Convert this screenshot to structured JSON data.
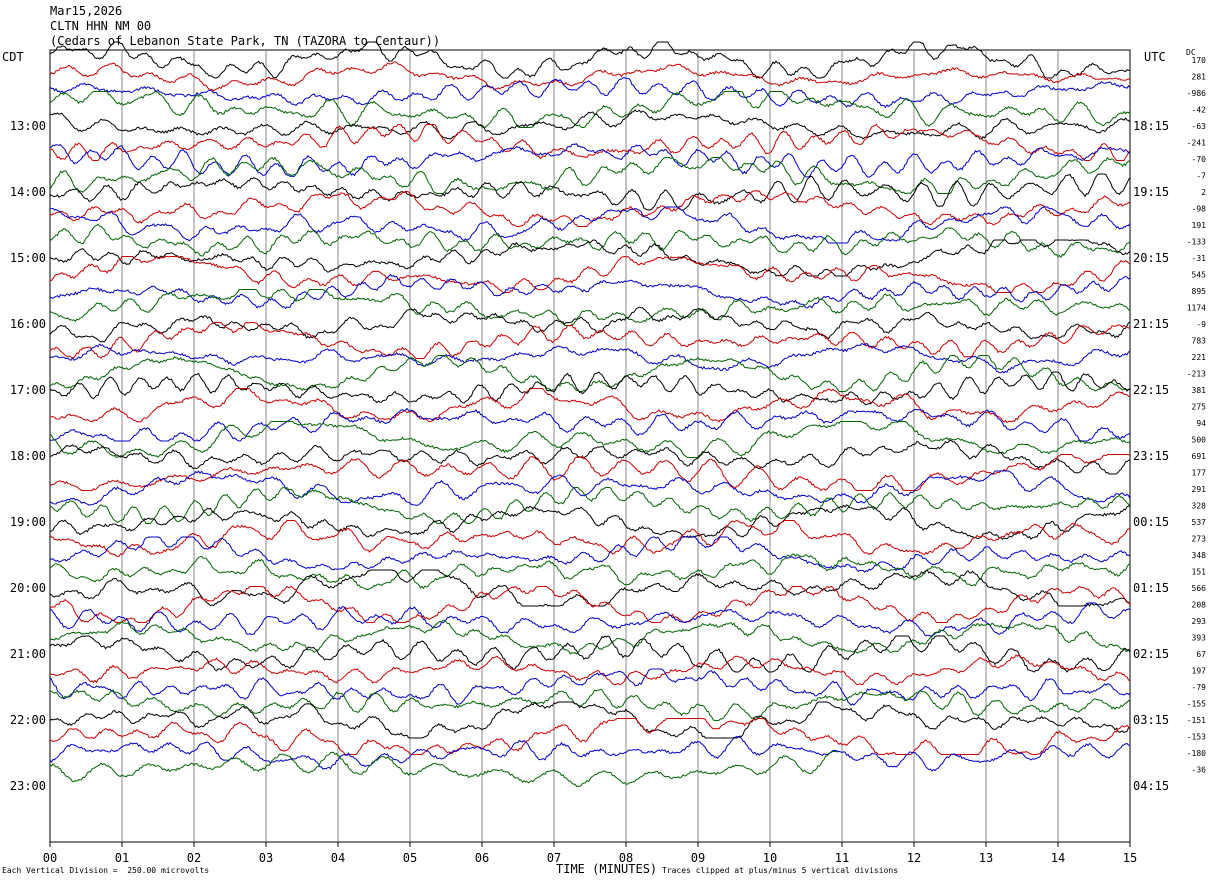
{
  "header": {
    "date": "Mar15,2026",
    "station": "CLTN HHN NM 00",
    "location": "(Cedars of Lebanon State Park, TN (TAZORA to Centaur))"
  },
  "left_zone": "CDT",
  "right_zone": "UTC",
  "dc_label": "DC",
  "footer": {
    "vertical_division": "Each Vertical Division =  250.00 microvolts",
    "clip_note": "Traces clipped at plus/minus 5 vertical divisions",
    "x_title": "TIME (MINUTES)"
  },
  "colors": {
    "trace_cycle": [
      "#000000",
      "#cc0000",
      "#0000cc",
      "#006600"
    ],
    "grid": "#888888"
  },
  "chart_data": {
    "type": "line",
    "subtype": "helicorder",
    "title": "CLTN HHN NM 00",
    "xlabel": "TIME (MINUTES)",
    "x_ticks": [
      "00",
      "01",
      "02",
      "03",
      "04",
      "05",
      "06",
      "07",
      "08",
      "09",
      "10",
      "11",
      "12",
      "13",
      "14",
      "15"
    ],
    "xlim": [
      0,
      15
    ],
    "minutes_per_line": 15,
    "left_hour_labels": [
      "13:00",
      "14:00",
      "15:00",
      "16:00",
      "17:00",
      "18:00",
      "19:00",
      "20:00",
      "21:00",
      "22:00",
      "23:00"
    ],
    "right_hour_labels": [
      "18:15",
      "19:15",
      "20:15",
      "21:15",
      "22:15",
      "23:15",
      "00:15",
      "01:15",
      "02:15",
      "03:15",
      "04:15"
    ],
    "dc_offsets": [
      "170",
      "281",
      "-986",
      "-42",
      "-63",
      "-241",
      "-70",
      "-7",
      "2",
      "-98",
      "191",
      "-133",
      "-31",
      "545",
      "895",
      "1174",
      "-9",
      "783",
      "221",
      "-213",
      "381",
      "275",
      "94",
      "500",
      "691",
      "177",
      "291",
      "328",
      "537",
      "273",
      "348",
      "151",
      "566",
      "208",
      "293",
      "393",
      "67",
      "197",
      "-79",
      "-155",
      "-151",
      "-153",
      "-180",
      "-36"
    ],
    "trace_count": 44,
    "last_trace_fraction": 0.73
  }
}
